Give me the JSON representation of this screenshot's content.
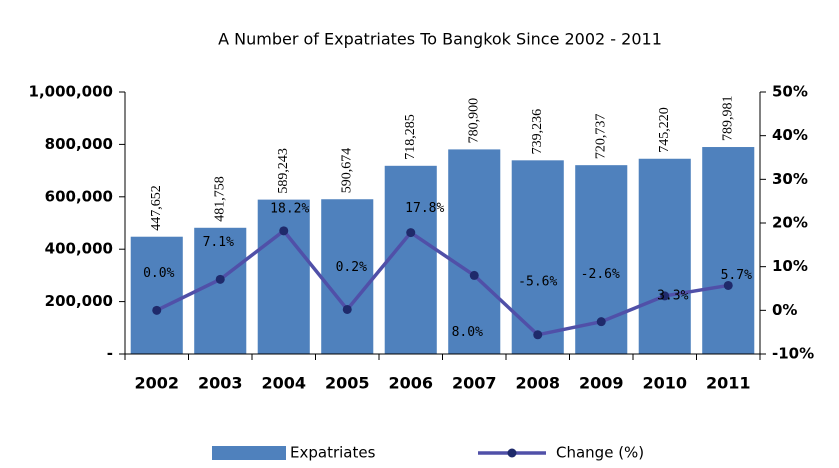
{
  "chart_data": {
    "type": "bar",
    "title": "A Number of Expatriates To Bangkok Since 2002 - 2011",
    "categories": [
      "2002",
      "2003",
      "2004",
      "2005",
      "2006",
      "2007",
      "2008",
      "2009",
      "2010",
      "2011"
    ],
    "series": [
      {
        "name": "Expatriates",
        "type": "bar",
        "axis": "y",
        "color": "#4f81bd",
        "values": [
          447652,
          481758,
          589243,
          590674,
          718285,
          780900,
          739236,
          720737,
          745220,
          789981
        ],
        "value_labels": [
          "447,652",
          "481,758",
          "589,243",
          "590,674",
          "718,285",
          "780,900",
          "739,236",
          "720,737",
          "745,220",
          "789,981"
        ]
      },
      {
        "name": "Change (%)",
        "type": "line",
        "axis": "y2",
        "color": "#5050a8",
        "marker_color": "#1f2a6b",
        "values": [
          0.0,
          7.1,
          18.2,
          0.2,
          17.8,
          8.0,
          -5.6,
          -2.6,
          3.3,
          5.7
        ],
        "value_labels": [
          "0.0%",
          "7.1%",
          "18.2%",
          "0.2%",
          "17.8%",
          "8.0%",
          "-5.6%",
          "-2.6%",
          "3.3%",
          "5.7%"
        ]
      }
    ],
    "ylim": [
      0,
      1000000
    ],
    "yticks": [
      {
        "value": 0,
        "label": "-"
      },
      {
        "value": 200000,
        "label": "200,000"
      },
      {
        "value": 400000,
        "label": "400,000"
      },
      {
        "value": 600000,
        "label": "600,000"
      },
      {
        "value": 800000,
        "label": "800,000"
      },
      {
        "value": 1000000,
        "label": "1,000,000"
      }
    ],
    "y2lim": [
      -10,
      50
    ],
    "y2ticks": [
      {
        "value": -10,
        "label": "-10%"
      },
      {
        "value": 0,
        "label": "0%"
      },
      {
        "value": 10,
        "label": "10%"
      },
      {
        "value": 20,
        "label": "20%"
      },
      {
        "value": 30,
        "label": "30%"
      },
      {
        "value": 40,
        "label": "40%"
      },
      {
        "value": 50,
        "label": "50%"
      }
    ],
    "grid": false,
    "legend": "bottom"
  }
}
